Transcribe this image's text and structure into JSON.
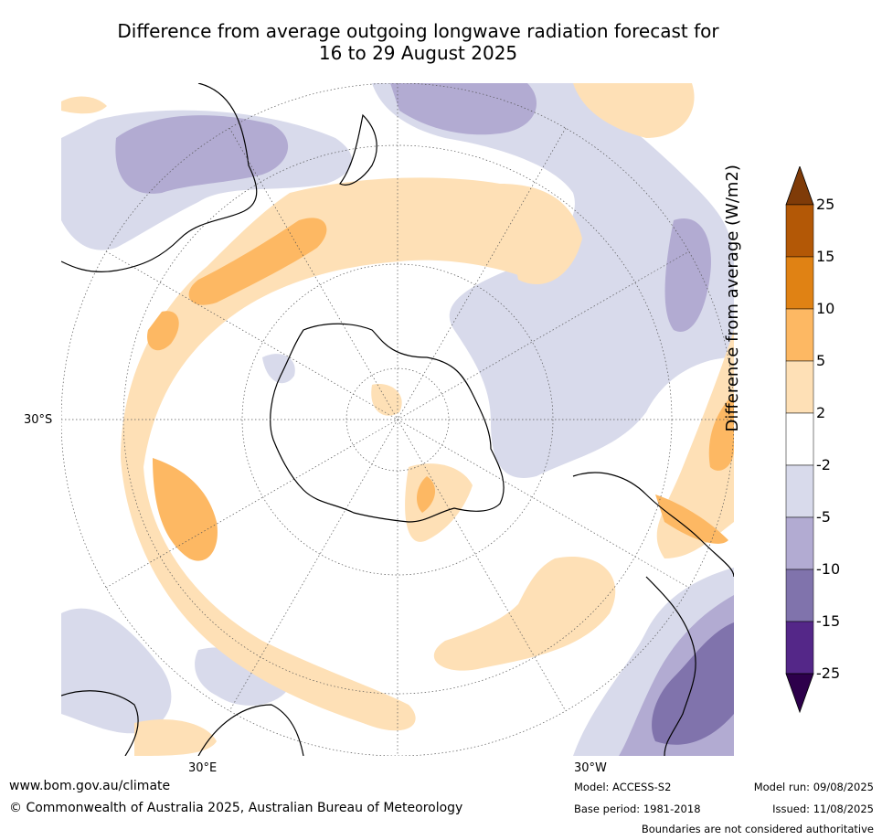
{
  "title_line1": "Difference from average outgoing longwave radiation forecast for",
  "title_line2": "16 to 29 August 2025",
  "map": {
    "lat_label": "30°S",
    "lon_label_left": "30°E",
    "lon_label_right": "30°W"
  },
  "colorbar": {
    "title": "Difference from average (W/m2)",
    "ticks": [
      "25",
      "15",
      "10",
      "5",
      "2",
      "-2",
      "-5",
      "-10",
      "-15",
      "-25"
    ],
    "colors": {
      "over": "#7f3b08",
      "15_25": "#b35806",
      "10_15": "#e08214",
      "5_10": "#fdb863",
      "2_5": "#fee0b6",
      "-2_2": "#ffffff",
      "-5_-2": "#d8daeb",
      "-10_-5": "#b2abd2",
      "-15_-10": "#8073ac",
      "-25_-15": "#542788",
      "under": "#2d004b"
    }
  },
  "footer": {
    "website": "www.bom.gov.au/climate",
    "copyright": "© Commonwealth of Australia 2025, Australian Bureau of Meteorology",
    "model": "Model: ACCESS-S2",
    "base_period": "Base period: 1981-2018",
    "model_run": "Model run: 09/08/2025",
    "issued": "Issued: 11/08/2025",
    "disclaimer": "Boundaries are not considered authoritative"
  }
}
